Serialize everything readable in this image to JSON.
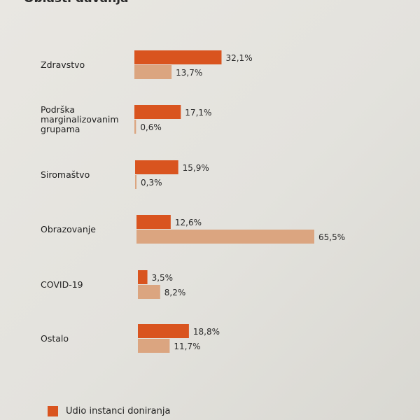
{
  "chart_data": {
    "type": "bar",
    "orientation": "horizontal",
    "title": "Oblasti davanja",
    "categories": [
      [
        "Zdravstvo"
      ],
      [
        "Podrška",
        "marginalizovanim",
        "grupama"
      ],
      [
        "Siromaštvo"
      ],
      [
        "Obrazovanje"
      ],
      [
        "COVID-19"
      ],
      [
        "Ostalo"
      ]
    ],
    "series": [
      {
        "name": "Udio instanci doniranja",
        "color": "#d9541f",
        "values": [
          32.1,
          17.1,
          15.9,
          12.6,
          3.5,
          18.8
        ],
        "labels": [
          "32,1%",
          "17,1%",
          "15,9%",
          "12,6%",
          "3,5%",
          "18,8%"
        ]
      },
      {
        "color": "#dba580",
        "values": [
          13.7,
          0.6,
          0.3,
          65.5,
          8.2,
          11.7
        ],
        "labels": [
          "13,7%",
          "0,6%",
          "0,3%",
          "65,5%",
          "8,2%",
          "11,7%"
        ]
      }
    ],
    "xlim": [
      0,
      65.5
    ],
    "grid": false,
    "legend_position": "bottom"
  }
}
